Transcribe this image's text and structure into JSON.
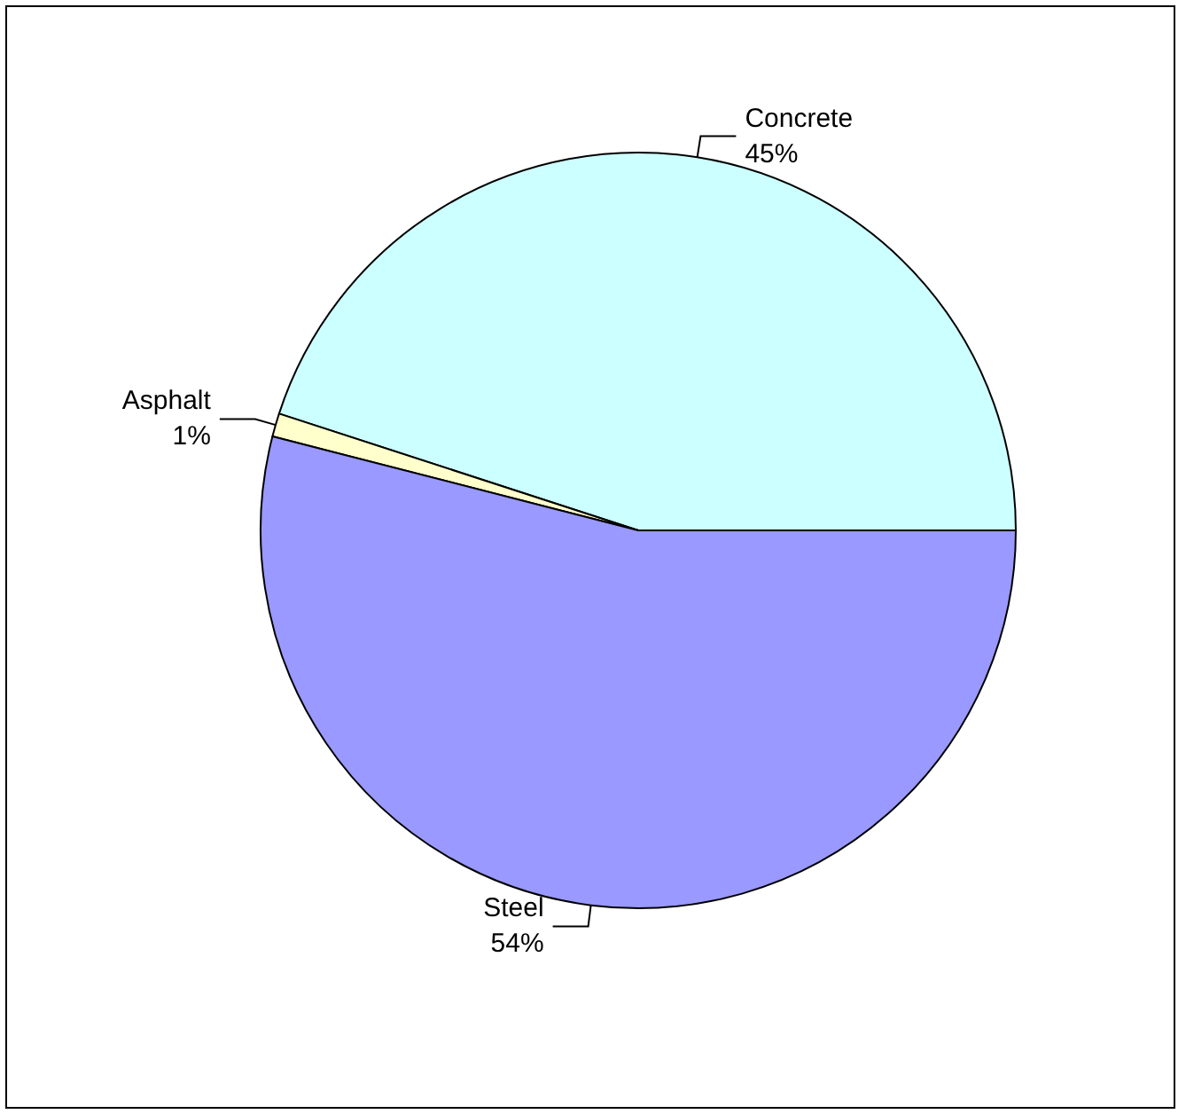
{
  "chart_data": {
    "type": "pie",
    "categories": [
      "Concrete",
      "Asphalt",
      "Steel"
    ],
    "values": [
      45,
      1,
      54
    ],
    "value_labels": [
      "45%",
      "1%",
      "54%"
    ],
    "colors": [
      "#ccffff",
      "#ffffcc",
      "#9999ff"
    ],
    "legend": false
  }
}
